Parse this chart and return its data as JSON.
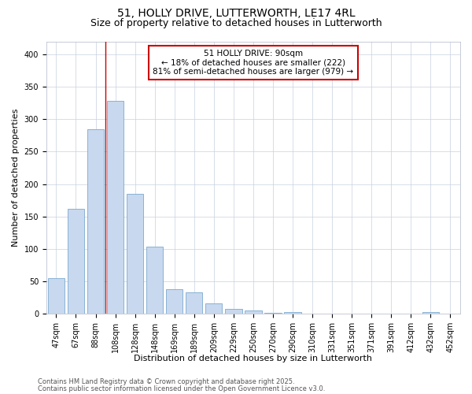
{
  "title_line1": "51, HOLLY DRIVE, LUTTERWORTH, LE17 4RL",
  "title_line2": "Size of property relative to detached houses in Lutterworth",
  "xlabel": "Distribution of detached houses by size in Lutterworth",
  "ylabel": "Number of detached properties",
  "categories": [
    "47sqm",
    "67sqm",
    "88sqm",
    "108sqm",
    "128sqm",
    "148sqm",
    "169sqm",
    "189sqm",
    "209sqm",
    "229sqm",
    "250sqm",
    "270sqm",
    "290sqm",
    "310sqm",
    "331sqm",
    "351sqm",
    "371sqm",
    "391sqm",
    "412sqm",
    "432sqm",
    "452sqm"
  ],
  "values": [
    55,
    162,
    285,
    328,
    185,
    103,
    38,
    33,
    16,
    7,
    5,
    1,
    3,
    0,
    0,
    0,
    0,
    0,
    0,
    3,
    0
  ],
  "bar_color": "#c8d8ee",
  "bar_edge_color": "#7aaad0",
  "vline_color": "#cc0000",
  "vline_position": 2.5,
  "annotation_text": "51 HOLLY DRIVE: 90sqm\n← 18% of detached houses are smaller (222)\n81% of semi-detached houses are larger (979) →",
  "annotation_box_color": "#ffffff",
  "annotation_box_edge": "#cc0000",
  "ylim": [
    0,
    420
  ],
  "yticks": [
    0,
    50,
    100,
    150,
    200,
    250,
    300,
    350,
    400
  ],
  "bg_color": "#ffffff",
  "plot_bg_color": "#ffffff",
  "grid_color": "#c8d0e0",
  "footer_line1": "Contains HM Land Registry data © Crown copyright and database right 2025.",
  "footer_line2": "Contains public sector information licensed under the Open Government Licence v3.0.",
  "title_fontsize": 10,
  "subtitle_fontsize": 9,
  "axis_label_fontsize": 8,
  "tick_fontsize": 7,
  "annotation_fontsize": 7.5,
  "footer_fontsize": 6
}
